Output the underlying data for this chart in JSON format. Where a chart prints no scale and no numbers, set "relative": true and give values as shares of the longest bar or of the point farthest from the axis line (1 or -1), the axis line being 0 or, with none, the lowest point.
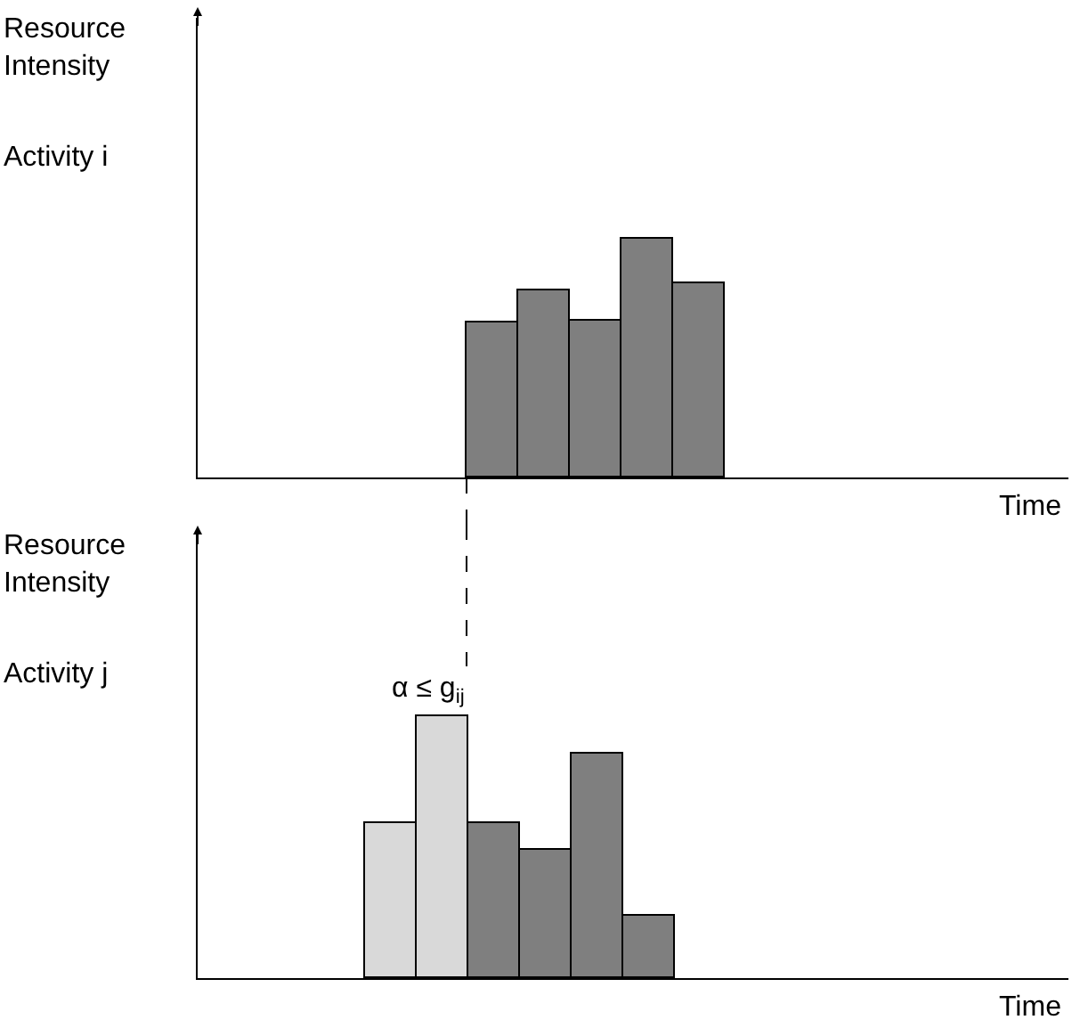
{
  "chart_data": [
    {
      "type": "bar",
      "relative": true,
      "ylabel": "Resource Intensity",
      "annotations": [
        "Activity i",
        "Time"
      ],
      "categories": [
        null,
        null,
        null,
        null,
        null
      ],
      "values": [
        0.65,
        0.78,
        0.66,
        1,
        0.81
      ],
      "color": "#7f7f7f"
    },
    {
      "type": "bar",
      "relative": true,
      "ylabel": "Resource Intensity",
      "annotations": [
        "Activity j",
        "Time",
        "α ≤ g$_{ij}$"
      ],
      "categories": [
        null,
        null,
        null,
        null,
        null,
        null
      ],
      "values": [
        0.59,
        1,
        0.59,
        0.49,
        0.86,
        0.24
      ],
      "colors": [
        "#d9d9d9",
        "#d9d9d9",
        "#7f7f7f",
        "#7f7f7f",
        "#7f7f7f",
        "#7f7f7f"
      ]
    }
  ]
}
